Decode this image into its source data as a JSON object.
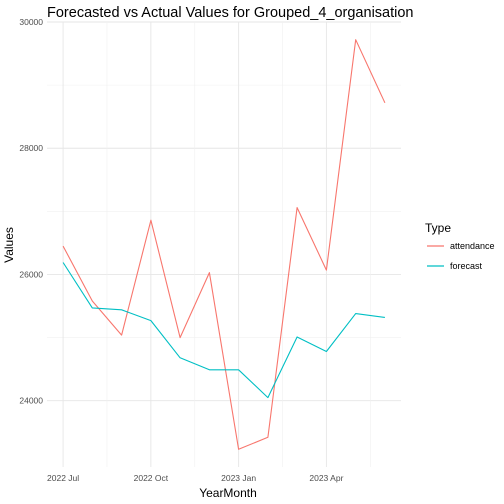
{
  "chart_data": {
    "type": "line",
    "title": "Forecasted vs Actual Values for Grouped_4_organisation",
    "xlabel": "YearMonth",
    "ylabel": "Values",
    "x": [
      "2022-07",
      "2022-08",
      "2022-09",
      "2022-10",
      "2022-11",
      "2022-12",
      "2023-01",
      "2023-02",
      "2023-03",
      "2023-04",
      "2023-05",
      "2023-06"
    ],
    "x_ticks": [
      {
        "value": "2022-07",
        "label": "2022 Jul"
      },
      {
        "value": "2022-10",
        "label": "2022 Oct"
      },
      {
        "value": "2023-01",
        "label": "2023 Jan"
      },
      {
        "value": "2023-04",
        "label": "2023 Apr"
      }
    ],
    "y_ticks": [
      24000,
      26000,
      28000,
      30000
    ],
    "ylim": [
      22950,
      30000
    ],
    "grid": true,
    "legend_title": "Type",
    "legend_position": "right",
    "series": [
      {
        "name": "attendance",
        "color": "#F8766D",
        "values": [
          26450,
          25580,
          25040,
          26860,
          25000,
          26030,
          23230,
          23420,
          27060,
          26070,
          29720,
          28720
        ]
      },
      {
        "name": "forecast",
        "color": "#00BFC4",
        "values": [
          26190,
          25470,
          25440,
          25270,
          24680,
          24490,
          24490,
          24050,
          25010,
          24780,
          25380,
          25320
        ]
      }
    ]
  }
}
